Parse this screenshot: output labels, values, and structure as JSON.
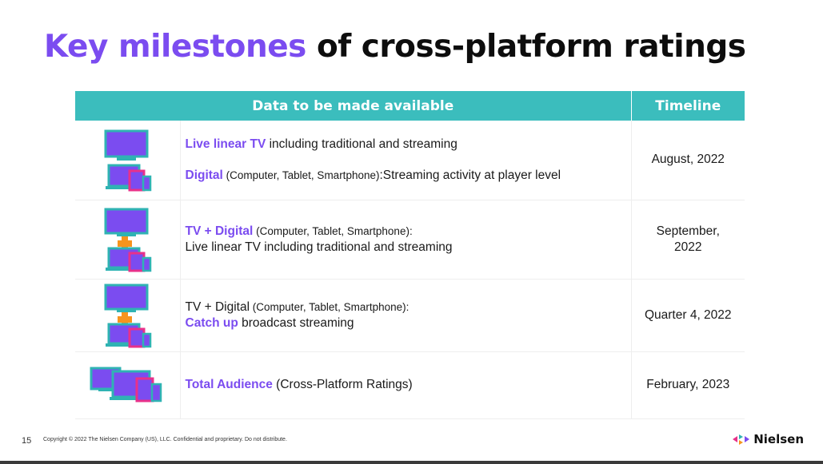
{
  "title": {
    "accent": "Key milestones",
    "rest": " of cross-platform ratings"
  },
  "table": {
    "headers": {
      "data": "Data to be made available",
      "timeline": "Timeline"
    },
    "rows": [
      {
        "line1_hl": "Live linear TV",
        "line1_text": " including traditional and streaming",
        "line2_hl": "Digital",
        "line2_small": " (Computer, Tablet, Smartphone)",
        "line2_text": ":Streaming activity at player level",
        "timeline": "August, 2022"
      },
      {
        "line1_hl": "TV + Digital",
        "line1_small": " (Computer, Tablet, Smartphone):",
        "line2_text": "Live linear TV including traditional and streaming",
        "timeline_a": "September,",
        "timeline_b": "2022"
      },
      {
        "line1_text": "TV + Digital",
        "line1_small": " (Computer, Tablet, Smartphone):",
        "line2_hl": "Catch up",
        "line2_text": " broadcast streaming",
        "timeline": "Quarter 4, 2022"
      },
      {
        "line1_hl": "Total Audience",
        "line1_text": " (Cross-Platform Ratings)",
        "timeline": "February, 2023"
      }
    ]
  },
  "icons": {
    "tv": "tv-icon",
    "devices": "devices-icon",
    "plus": "plus-icon",
    "all_screens": "all-screens-icon"
  },
  "colors": {
    "accent": "#7b4cf0",
    "header": "#3bbdbd",
    "teal": "#2fb3b3",
    "orange": "#f7941d",
    "pink": "#e8318a"
  },
  "footer": {
    "page_number": "15",
    "copyright": "Copyright © 2022 The Nielsen Company (US), LLC. Confidential and proprietary. Do not distribute.",
    "brand": "Nielsen"
  }
}
